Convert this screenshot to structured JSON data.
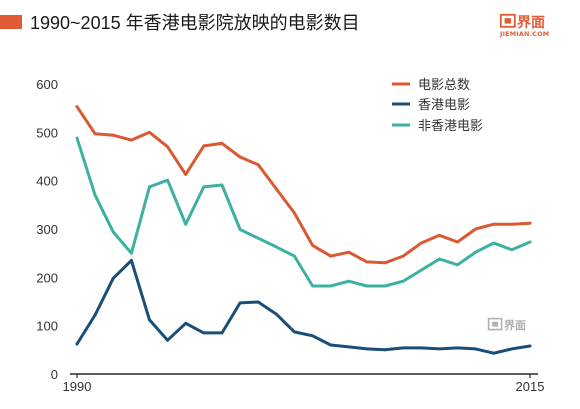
{
  "chart_data": {
    "type": "line",
    "title": "1990~2015 年香港电影院放映的电影数目",
    "x": [
      1990,
      1991,
      1992,
      1993,
      1994,
      1995,
      1996,
      1997,
      1998,
      1999,
      2000,
      2001,
      2002,
      2003,
      2004,
      2005,
      2006,
      2007,
      2008,
      2009,
      2010,
      2011,
      2012,
      2013,
      2014,
      2015
    ],
    "xlim": [
      1990,
      2015
    ],
    "xticks": [
      "1990",
      "2015"
    ],
    "ylim": [
      0,
      600
    ],
    "yticks": [
      "0",
      "100",
      "200",
      "300",
      "400",
      "500",
      "600"
    ],
    "xlabel": "",
    "ylabel": "",
    "grid": false,
    "legend": "top-right",
    "series": [
      {
        "name": "电影总数",
        "color": "#D95A32",
        "values": [
          553,
          497,
          494,
          484,
          500,
          470,
          413,
          472,
          477,
          449,
          433,
          383,
          333,
          266,
          244,
          252,
          232,
          230,
          244,
          271,
          287,
          273,
          300,
          310,
          310,
          312
        ]
      },
      {
        "name": "香港电影",
        "color": "#1A4E76",
        "values": [
          62,
          122,
          198,
          235,
          112,
          70,
          105,
          85,
          85,
          147,
          149,
          124,
          87,
          79,
          60,
          56,
          52,
          50,
          54,
          54,
          52,
          54,
          52,
          43,
          52,
          58
        ]
      },
      {
        "name": "非香港电影",
        "color": "#3DB0A2",
        "values": [
          488,
          370,
          294,
          250,
          387,
          401,
          310,
          387,
          391,
          299,
          281,
          263,
          244,
          182,
          182,
          192,
          182,
          182,
          192,
          215,
          238,
          226,
          252,
          271,
          257,
          273
        ]
      }
    ]
  },
  "colors": {
    "accent": "#E15B37",
    "axis": "#2a2a2a",
    "watermark": "#a8a8a8"
  },
  "logo": {
    "icon": "jiemian-logo-icon",
    "text": "界面",
    "sub": "JIEMIAN.COM"
  },
  "watermark": {
    "icon": "jiemian-logo-icon",
    "text": "界面"
  }
}
